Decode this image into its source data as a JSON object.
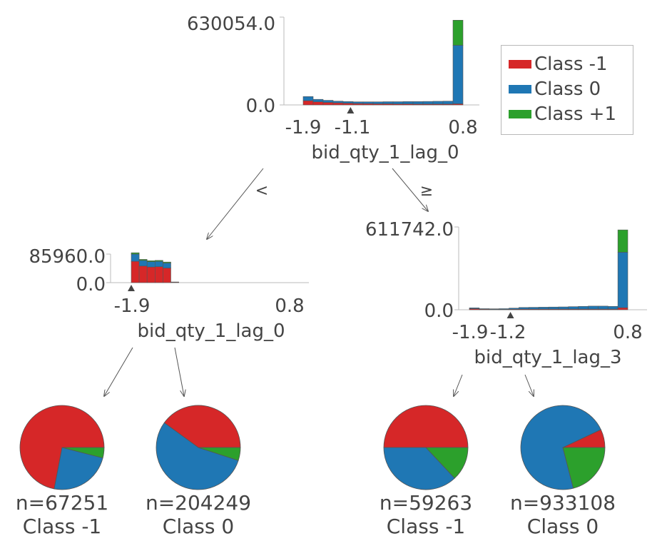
{
  "colors": {
    "class_neg1": "#d62728",
    "class_0": "#1f77b4",
    "class_pos1": "#2ca02c",
    "text": "#444444",
    "axis": "#bbbbbb",
    "edge": "#555555"
  },
  "legend": {
    "items": [
      {
        "label": "Class -1",
        "color": "#d62728"
      },
      {
        "label": "Class 0",
        "color": "#1f77b4"
      },
      {
        "label": "Class +1",
        "color": "#2ca02c"
      }
    ]
  },
  "edges": {
    "left_label": "<",
    "right_label": "≥"
  },
  "nodes": {
    "root": {
      "feature": "bid_qty_1_lag_0",
      "y_max_label": "630054.0",
      "y_min_label": "0.0",
      "y_max": 630054,
      "x_range": [
        -1.9,
        0.8
      ],
      "split_value": -1.1,
      "x_tick_labels": [
        "-1.9",
        "-1.1",
        "0.8"
      ],
      "x_tick_values": [
        -1.9,
        -1.1,
        0.8
      ],
      "bins": [
        [
          30000,
          30000,
          0
        ],
        [
          22000,
          18000,
          0
        ],
        [
          18000,
          15000,
          0
        ],
        [
          15000,
          12000,
          0
        ],
        [
          12000,
          12000,
          0
        ],
        [
          10000,
          12000,
          0
        ],
        [
          9000,
          13000,
          0
        ],
        [
          8000,
          14000,
          0
        ],
        [
          8000,
          15000,
          0
        ],
        [
          7000,
          16000,
          0
        ],
        [
          7000,
          17000,
          0
        ],
        [
          6000,
          18000,
          0
        ],
        [
          6000,
          19000,
          0
        ],
        [
          6000,
          20000,
          0
        ],
        [
          6000,
          21000,
          0
        ],
        [
          8000,
          420000,
          180000
        ]
      ]
    },
    "left": {
      "feature": "bid_qty_1_lag_0",
      "y_max_label": "85960.0",
      "y_min_label": "0.0",
      "y_max": 85960,
      "x_range": [
        -1.9,
        0.8
      ],
      "split_value": -1.9,
      "x_tick_labels": [
        "-1.9",
        "0.8"
      ],
      "x_tick_values": [
        -1.9,
        0.8
      ],
      "bins": [
        [
          64000,
          22000,
          4000
        ],
        [
          50000,
          17000,
          3000
        ],
        [
          47000,
          16000,
          3000
        ],
        [
          48000,
          16000,
          3000
        ],
        [
          44000,
          15000,
          3000
        ],
        [
          1500,
          500,
          0
        ],
        [
          0,
          0,
          0
        ],
        [
          0,
          0,
          0
        ],
        [
          0,
          0,
          0
        ],
        [
          0,
          0,
          0
        ],
        [
          0,
          0,
          0
        ],
        [
          0,
          0,
          0
        ],
        [
          0,
          0,
          0
        ],
        [
          0,
          0,
          0
        ],
        [
          0,
          0,
          0
        ],
        [
          0,
          0,
          0
        ],
        [
          0,
          0,
          0
        ],
        [
          0,
          0,
          0
        ],
        [
          0,
          0,
          0
        ],
        [
          0,
          0,
          0
        ]
      ]
    },
    "right": {
      "feature": "bid_qty_1_lag_3",
      "y_max_label": "611742.0",
      "y_min_label": "0.0",
      "y_max": 611742,
      "x_range": [
        -1.9,
        0.8
      ],
      "split_value": -1.2,
      "x_tick_labels": [
        "-1.9",
        "-1.2",
        "0.8"
      ],
      "x_tick_values": [
        -1.9,
        -1.2,
        0.8
      ],
      "bins": [
        [
          8000,
          6000,
          0
        ],
        [
          4000,
          4000,
          0
        ],
        [
          3000,
          4000,
          0
        ],
        [
          3000,
          5000,
          0
        ],
        [
          4000,
          8000,
          0
        ],
        [
          5000,
          12000,
          0
        ],
        [
          5000,
          13000,
          0
        ],
        [
          5000,
          14000,
          0
        ],
        [
          5000,
          15000,
          0
        ],
        [
          5000,
          16000,
          0
        ],
        [
          5000,
          18000,
          0
        ],
        [
          5000,
          20000,
          0
        ],
        [
          5000,
          22000,
          0
        ],
        [
          5000,
          22000,
          0
        ],
        [
          5000,
          20000,
          0
        ],
        [
          15000,
          410000,
          165000
        ]
      ]
    }
  },
  "leaves": [
    {
      "n_label": "n=67251",
      "class_label": "Class -1",
      "fractions": [
        0.72,
        0.24,
        0.04
      ]
    },
    {
      "n_label": "n=204249",
      "class_label": "Class 0",
      "fractions": [
        0.4,
        0.55,
        0.05
      ]
    },
    {
      "n_label": "n=59263",
      "class_label": "Class -1",
      "fractions": [
        0.5,
        0.37,
        0.13
      ]
    },
    {
      "n_label": "n=933108",
      "class_label": "Class 0",
      "fractions": [
        0.07,
        0.72,
        0.21
      ]
    }
  ]
}
